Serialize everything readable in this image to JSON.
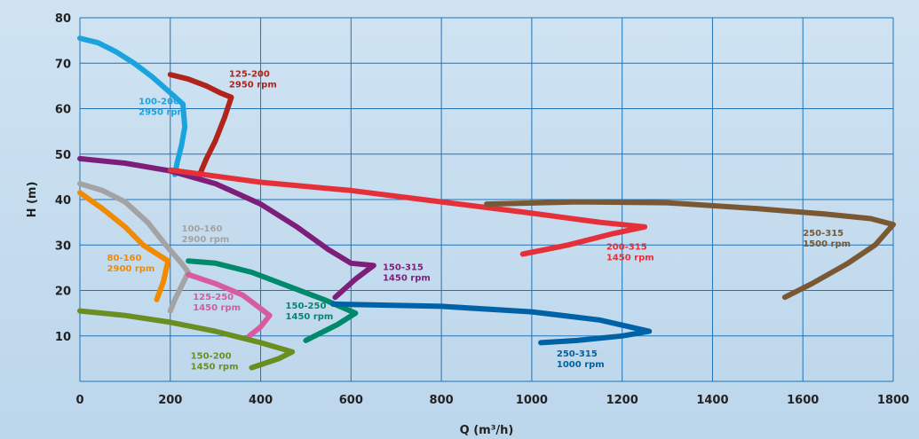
{
  "chart_data": {
    "type": "line",
    "xlabel": "Q (m³/h)",
    "ylabel": "H (m)",
    "xlim": [
      0,
      1800
    ],
    "ylim": [
      0,
      80
    ],
    "x_ticks": [
      0,
      200,
      400,
      600,
      800,
      1000,
      1200,
      1400,
      1600,
      1800
    ],
    "y_ticks": [
      10,
      20,
      30,
      40,
      50,
      60,
      70,
      80
    ],
    "grid": true,
    "series": [
      {
        "name": "100-200 2950 rpm",
        "label_lines": [
          "100-200",
          "2950 rpm"
        ],
        "color": "#1aa3dd",
        "label_pos": [
          130,
          61
        ],
        "points": [
          [
            0,
            75.5
          ],
          [
            40,
            74.5
          ],
          [
            80,
            72.5
          ],
          [
            120,
            70
          ],
          [
            160,
            67
          ],
          [
            200,
            63.5
          ],
          [
            228,
            61
          ],
          [
            232,
            56
          ],
          [
            225,
            52
          ],
          [
            215,
            48
          ],
          [
            210,
            45.5
          ]
        ]
      },
      {
        "name": "125-200 2950 rpm",
        "label_lines": [
          "125-200",
          "2950 rpm"
        ],
        "color": "#b0241b",
        "label_pos": [
          330,
          67
        ],
        "points": [
          [
            200,
            67.5
          ],
          [
            240,
            66.5
          ],
          [
            280,
            65
          ],
          [
            310,
            63.5
          ],
          [
            335,
            62.5
          ],
          [
            320,
            58
          ],
          [
            300,
            53
          ],
          [
            280,
            49
          ],
          [
            265,
            45.5
          ]
        ]
      },
      {
        "name": "150-315 1450 rpm",
        "label_lines": [
          "150-315",
          "1450 rpm"
        ],
        "color": "#7d1f7a",
        "label_pos": [
          670,
          24.5
        ],
        "points": [
          [
            0,
            49
          ],
          [
            100,
            48
          ],
          [
            200,
            46.3
          ],
          [
            300,
            43.5
          ],
          [
            400,
            39
          ],
          [
            480,
            34
          ],
          [
            550,
            29
          ],
          [
            600,
            26
          ],
          [
            650,
            25.5
          ],
          [
            610,
            22.5
          ],
          [
            565,
            18.5
          ]
        ]
      },
      {
        "name": "200-315 1450 rpm",
        "label_lines": [
          "200-315",
          "1450 rpm"
        ],
        "color": "#e5303a",
        "label_pos": [
          1165,
          29
        ],
        "points": [
          [
            200,
            46.5
          ],
          [
            400,
            43.8
          ],
          [
            600,
            42
          ],
          [
            800,
            39.5
          ],
          [
            1000,
            37
          ],
          [
            1150,
            35
          ],
          [
            1250,
            34
          ],
          [
            1180,
            32.5
          ],
          [
            1080,
            30
          ],
          [
            980,
            28
          ]
        ]
      },
      {
        "name": "250-315 1500 rpm",
        "label_lines": [
          "250-315",
          "1500 rpm"
        ],
        "color": "#7a5833",
        "label_pos": [
          1600,
          32
        ],
        "points": [
          [
            900,
            39
          ],
          [
            1100,
            39.5
          ],
          [
            1300,
            39.3
          ],
          [
            1500,
            38
          ],
          [
            1650,
            36.8
          ],
          [
            1750,
            35.8
          ],
          [
            1800,
            34.5
          ],
          [
            1760,
            30
          ],
          [
            1700,
            26
          ],
          [
            1620,
            21.5
          ],
          [
            1560,
            18.5
          ]
        ]
      },
      {
        "name": "100-160 2900 rpm",
        "label_lines": [
          "100-160",
          "2900 rpm"
        ],
        "color": "#a3a3a3",
        "label_pos": [
          225,
          33
        ],
        "points": [
          [
            0,
            43.5
          ],
          [
            50,
            42
          ],
          [
            100,
            39.5
          ],
          [
            150,
            35
          ],
          [
            190,
            30
          ],
          [
            225,
            26
          ],
          [
            240,
            24
          ],
          [
            225,
            21
          ],
          [
            210,
            18
          ],
          [
            200,
            15.5
          ]
        ]
      },
      {
        "name": "80-160 2900 rpm",
        "label_lines": [
          "80-160",
          "2900 rpm"
        ],
        "color": "#f18a00",
        "label_pos": [
          60,
          26.5
        ],
        "points": [
          [
            0,
            41.5
          ],
          [
            50,
            38
          ],
          [
            100,
            34
          ],
          [
            140,
            30
          ],
          [
            195,
            26.5
          ],
          [
            185,
            22
          ],
          [
            170,
            18
          ]
        ]
      },
      {
        "name": "150-250 1450 rpm",
        "label_lines": [
          "150-250",
          "1450 rpm"
        ],
        "color": "#008a6c",
        "label_pos": [
          455,
          16
        ],
        "points": [
          [
            240,
            26.5
          ],
          [
            300,
            26
          ],
          [
            380,
            24
          ],
          [
            460,
            21
          ],
          [
            540,
            18
          ],
          [
            610,
            15
          ],
          [
            570,
            12.5
          ],
          [
            530,
            10.5
          ],
          [
            500,
            9
          ]
        ]
      },
      {
        "name": "125-250 1450 rpm",
        "label_lines": [
          "125-250",
          "1450 rpm"
        ],
        "color": "#d85a9f",
        "label_pos": [
          250,
          18
        ],
        "points": [
          [
            240,
            23.5
          ],
          [
            300,
            21.5
          ],
          [
            360,
            19
          ],
          [
            400,
            16
          ],
          [
            420,
            14.5
          ],
          [
            400,
            12
          ],
          [
            375,
            10
          ]
        ]
      },
      {
        "name": "250-315 1000 rpm",
        "label_lines": [
          "250-315",
          "1000 rpm"
        ],
        "color": "#0062a6",
        "label_pos": [
          1055,
          5.5
        ],
        "points": [
          [
            560,
            17
          ],
          [
            800,
            16.5
          ],
          [
            1000,
            15.3
          ],
          [
            1150,
            13.5
          ],
          [
            1260,
            11
          ],
          [
            1200,
            10
          ],
          [
            1100,
            9
          ],
          [
            1020,
            8.5
          ]
        ]
      },
      {
        "name": "150-200 1450 rpm",
        "label_lines": [
          "150-200",
          "1450 rpm"
        ],
        "color": "#6b8e23",
        "label_pos": [
          245,
          5
        ],
        "points": [
          [
            0,
            15.5
          ],
          [
            100,
            14.5
          ],
          [
            200,
            13
          ],
          [
            300,
            11
          ],
          [
            400,
            8.5
          ],
          [
            470,
            6.5
          ],
          [
            440,
            5
          ],
          [
            410,
            4
          ],
          [
            380,
            3
          ]
        ]
      }
    ]
  }
}
